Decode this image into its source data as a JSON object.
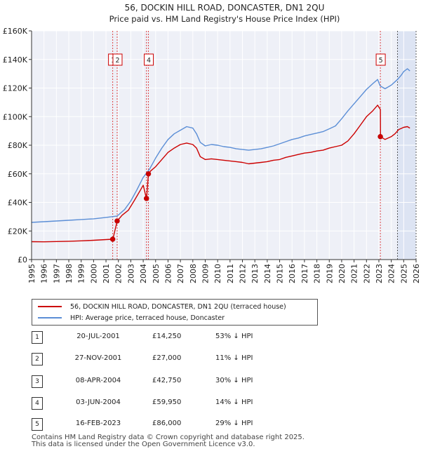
{
  "chart_data": {
    "type": "line",
    "title": "56, DOCKIN HILL ROAD, DONCASTER, DN1 2QU",
    "subtitle": "Price paid vs. HM Land Registry's House Price Index (HPI)",
    "xlim": [
      1995,
      2026
    ],
    "ylim": [
      0,
      160000
    ],
    "x_ticks": [
      "1995",
      "1996",
      "1997",
      "1998",
      "1999",
      "2000",
      "2001",
      "2002",
      "2003",
      "2004",
      "2005",
      "2006",
      "2007",
      "2008",
      "2009",
      "2010",
      "2011",
      "2012",
      "2013",
      "2014",
      "2015",
      "2016",
      "2017",
      "2018",
      "2019",
      "2020",
      "2021",
      "2022",
      "2023",
      "2024",
      "2025",
      "2026"
    ],
    "y_ticks": [
      {
        "value": 0,
        "label": "£0"
      },
      {
        "value": 20000,
        "label": "£20K"
      },
      {
        "value": 40000,
        "label": "£40K"
      },
      {
        "value": 60000,
        "label": "£60K"
      },
      {
        "value": 80000,
        "label": "£80K"
      },
      {
        "value": 100000,
        "label": "£100K"
      },
      {
        "value": 120000,
        "label": "£120K"
      },
      {
        "value": 140000,
        "label": "£140K"
      },
      {
        "value": 160000,
        "label": "£160K"
      }
    ],
    "forecast_start": 2024.5,
    "series": [
      {
        "name": "56, DOCKIN HILL ROAD, DONCASTER, DN1 2QU (terraced house)",
        "color": "#cc0000",
        "x": [
          1995,
          1996,
          1997,
          1998,
          1999,
          2000,
          2001,
          2001.54,
          2001.55,
          2001.9,
          2002.3,
          2002.8,
          2003.3,
          2003.8,
          2004.0,
          2004.26,
          2004.27,
          2004.42,
          2004.6,
          2005,
          2005.5,
          2006,
          2006.5,
          2007,
          2007.5,
          2008,
          2008.3,
          2008.6,
          2009,
          2009.5,
          2010,
          2010.5,
          2011,
          2011.5,
          2012,
          2012.5,
          2013,
          2013.5,
          2014,
          2014.5,
          2015,
          2015.5,
          2016,
          2016.5,
          2017,
          2017.5,
          2018,
          2018.5,
          2019,
          2019.5,
          2020,
          2020.5,
          2021,
          2021.5,
          2022,
          2022.5,
          2022.9,
          2023.12,
          2023.13,
          2023.5,
          2024,
          2024.3,
          2024.6,
          2025,
          2025.3,
          2025.5
        ],
        "y": [
          12500,
          12400,
          12600,
          12800,
          13100,
          13500,
          14000,
          14250,
          14100,
          27000,
          31000,
          34500,
          41500,
          49000,
          52000,
          42750,
          42700,
          59950,
          62000,
          65000,
          70000,
          75000,
          78000,
          80500,
          81500,
          80500,
          78000,
          72000,
          70000,
          70500,
          70000,
          69500,
          69000,
          68500,
          68000,
          67000,
          67500,
          68000,
          68500,
          69500,
          70000,
          71500,
          72500,
          73500,
          74500,
          75000,
          76000,
          76500,
          78000,
          79000,
          80000,
          83000,
          88000,
          94000,
          100000,
          104000,
          108000,
          105000,
          86000,
          84000,
          86000,
          88000,
          91000,
          92500,
          93000,
          92000
        ]
      },
      {
        "name": "HPI: Average price, terraced house, Doncaster",
        "color": "#5b8ed6",
        "x": [
          1995,
          1996,
          1997,
          1998,
          1999,
          2000,
          2001,
          2001.9,
          2002.5,
          2003,
          2003.5,
          2004,
          2004.5,
          2005,
          2005.5,
          2006,
          2006.5,
          2007,
          2007.5,
          2008,
          2008.3,
          2008.6,
          2009,
          2009.5,
          2010,
          2010.5,
          2011,
          2011.5,
          2012,
          2012.5,
          2013,
          2013.5,
          2014,
          2014.5,
          2015,
          2015.5,
          2016,
          2016.5,
          2017,
          2017.5,
          2018,
          2018.5,
          2019,
          2019.5,
          2020,
          2020.5,
          2021,
          2021.5,
          2022,
          2022.5,
          2022.9,
          2023.1,
          2023.5,
          2024,
          2024.5,
          2024.8,
          2025,
          2025.3,
          2025.5
        ],
        "y": [
          26000,
          26500,
          27000,
          27500,
          28000,
          28500,
          29500,
          30500,
          35000,
          41000,
          49000,
          57500,
          63000,
          71000,
          78000,
          84000,
          88000,
          90500,
          93000,
          92000,
          88000,
          82000,
          79500,
          80500,
          80000,
          79000,
          78500,
          77500,
          77000,
          76500,
          77000,
          77500,
          78500,
          79500,
          81000,
          82500,
          84000,
          85000,
          86500,
          87500,
          88500,
          89500,
          91500,
          93500,
          98500,
          104000,
          109000,
          114000,
          119000,
          123000,
          126000,
          121500,
          119500,
          122000,
          126000,
          129000,
          131500,
          133500,
          132000
        ]
      }
    ],
    "transactions": [
      {
        "num": "1",
        "x": 2001.54,
        "price": 14250
      },
      {
        "num": "2",
        "x": 2001.9,
        "price": 27000
      },
      {
        "num": "3",
        "x": 2004.26,
        "price": 42750
      },
      {
        "num": "4",
        "x": 2004.42,
        "price": 59950
      },
      {
        "num": "5",
        "x": 2023.12,
        "price": 86000
      }
    ],
    "chart_markers": [
      {
        "num": "1",
        "x": 2001.54
      },
      {
        "num": "2",
        "x": 2001.9
      },
      {
        "num": "4",
        "x": 2004.42
      },
      {
        "num": "5",
        "x": 2023.12
      }
    ]
  },
  "legend": {
    "property_label": "56, DOCKIN HILL ROAD, DONCASTER, DN1 2QU (terraced house)",
    "hpi_label": "HPI: Average price, terraced house, Doncaster"
  },
  "table": [
    {
      "num": "1",
      "date": "20-JUL-2001",
      "price": "£14,250",
      "hpi": "53% ↓ HPI"
    },
    {
      "num": "2",
      "date": "27-NOV-2001",
      "price": "£27,000",
      "hpi": "11% ↓ HPI"
    },
    {
      "num": "3",
      "date": "08-APR-2004",
      "price": "£42,750",
      "hpi": "30% ↓ HPI"
    },
    {
      "num": "4",
      "date": "03-JUN-2004",
      "price": "£59,950",
      "hpi": "14% ↓ HPI"
    },
    {
      "num": "5",
      "date": "16-FEB-2023",
      "price": "£86,000",
      "hpi": "29% ↓ HPI"
    }
  ],
  "footer": {
    "line1": "Contains HM Land Registry data © Crown copyright and database right 2025.",
    "line2": "This data is licensed under the Open Government Licence v3.0."
  },
  "colors": {
    "property": "#cc0000",
    "hpi": "#5b8ed6",
    "plot_bg": "#eef0f7",
    "shade": "#dde4f3",
    "grid": "#ffffff"
  }
}
